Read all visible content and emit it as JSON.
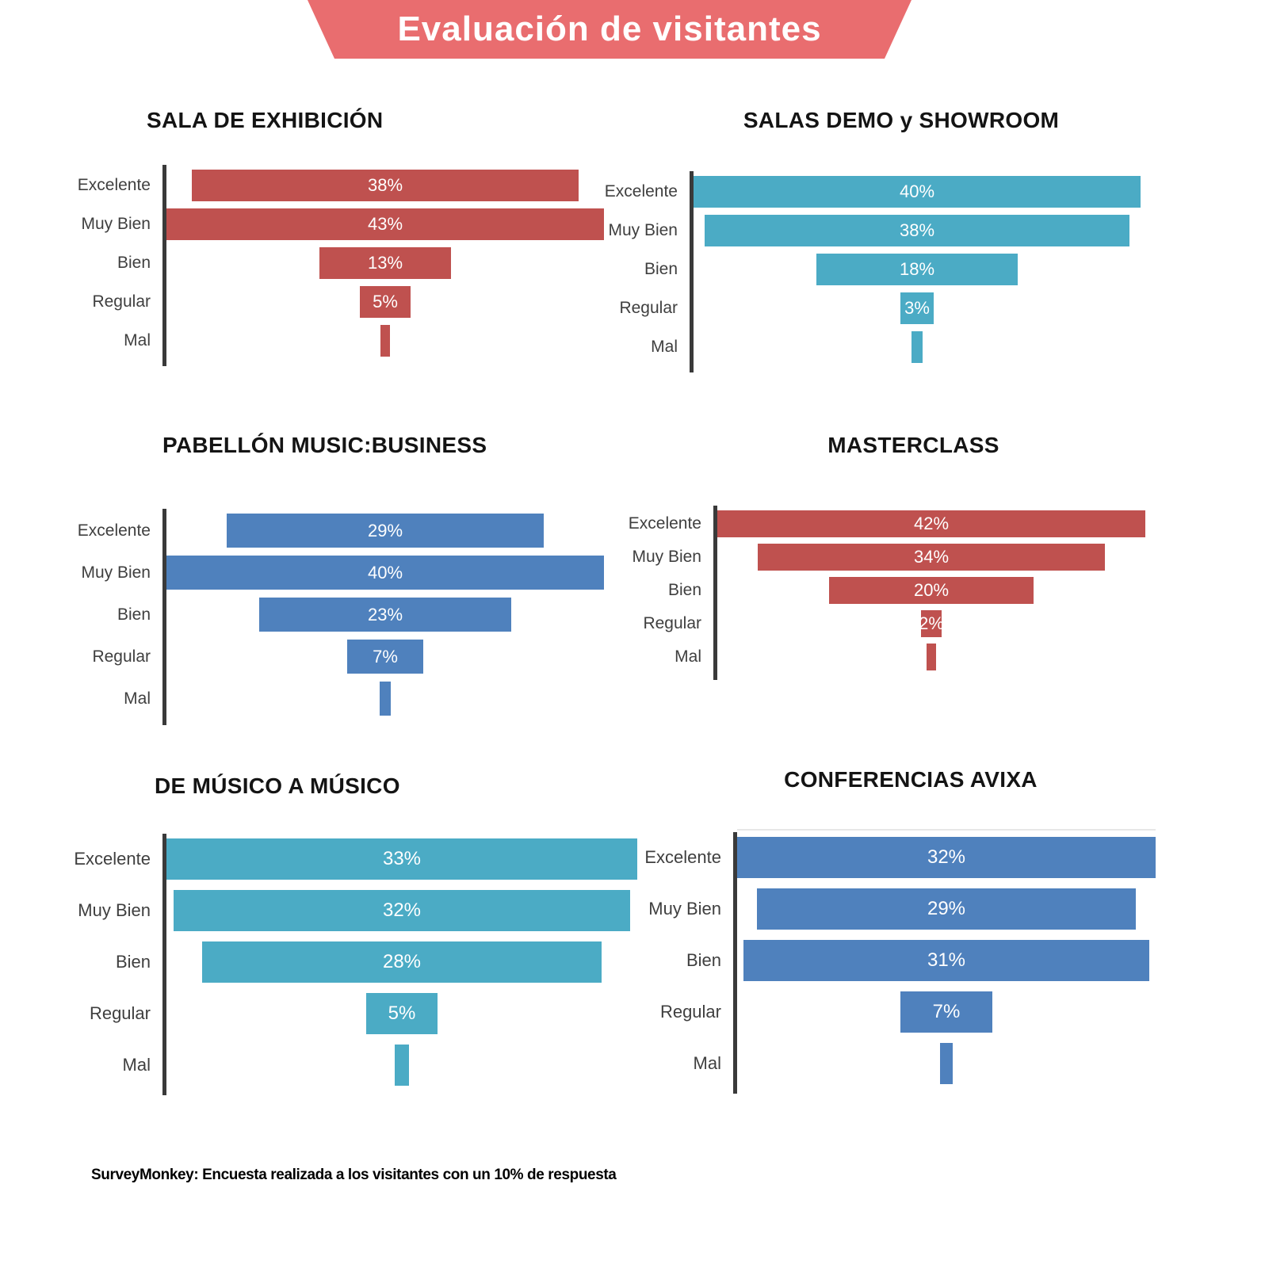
{
  "header": {
    "title": "Evaluación de visitantes",
    "banner_color": "#E96D6F"
  },
  "footer": {
    "source": "SurveyMonkey: Encuesta realizada a los visitantes con un 10% de respuesta"
  },
  "palette": {
    "red": "#BF514F",
    "teal": "#4BABC5",
    "blue": "#4F81BD",
    "axis": "#3a3a3a",
    "category_label": "#3f3f3f",
    "value_label": "#ffffff"
  },
  "chart_data": [
    {
      "type": "bar",
      "orientation": "horizontal",
      "bar_alignment": "centered-funnel",
      "title": "SALA DE EXHIBICIÓN",
      "color": "#BF514F",
      "categories": [
        "Excelente",
        "Muy Bien",
        "Bien",
        "Regular",
        "Mal"
      ],
      "values": [
        38,
        43,
        13,
        5,
        1
      ],
      "labels": [
        "38%",
        "43%",
        "13%",
        "5%",
        ""
      ],
      "notes": "Mal bar unlabeled, value estimated ~1%; widest bar spans axis to plot edge"
    },
    {
      "type": "bar",
      "orientation": "horizontal",
      "bar_alignment": "centered-funnel",
      "title": "SALAS DEMO y SHOWROOM",
      "color": "#4BABC5",
      "categories": [
        "Excelente",
        "Muy Bien",
        "Bien",
        "Regular",
        "Mal"
      ],
      "values": [
        40,
        38,
        18,
        3,
        1
      ],
      "labels": [
        "40%",
        "38%",
        "18%",
        "3%",
        ""
      ],
      "notes": "Mal bar unlabeled, value estimated ~1%"
    },
    {
      "type": "bar",
      "orientation": "horizontal",
      "bar_alignment": "centered-funnel",
      "title": "PABELLÓN MUSIC:BUSINESS",
      "color": "#4F81BD",
      "categories": [
        "Excelente",
        "Muy Bien",
        "Bien",
        "Regular",
        "Mal"
      ],
      "values": [
        29,
        40,
        23,
        7,
        1
      ],
      "labels": [
        "29%",
        "40%",
        "23%",
        "7%",
        ""
      ],
      "notes": "Mal bar unlabeled, value estimated ~1%"
    },
    {
      "type": "bar",
      "orientation": "horizontal",
      "bar_alignment": "centered-funnel",
      "title": "MASTERCLASS",
      "color": "#BF514F",
      "categories": [
        "Excelente",
        "Muy Bien",
        "Bien",
        "Regular",
        "Mal"
      ],
      "values": [
        42,
        34,
        20,
        2,
        1
      ],
      "labels": [
        "42%",
        "34%",
        "20%",
        "2%",
        ""
      ],
      "notes": "Mal bar unlabeled, value estimated ~1%"
    },
    {
      "type": "bar",
      "orientation": "horizontal",
      "bar_alignment": "centered-funnel",
      "title": "DE MÚSICO A MÚSICO",
      "color": "#4BABC5",
      "categories": [
        "Excelente",
        "Muy Bien",
        "Bien",
        "Regular",
        "Mal"
      ],
      "values": [
        33,
        32,
        28,
        5,
        1
      ],
      "labels": [
        "33%",
        "32%",
        "28%",
        "5%",
        ""
      ],
      "notes": "Mal bar unlabeled, value estimated ~1%"
    },
    {
      "type": "bar",
      "orientation": "horizontal",
      "bar_alignment": "centered-funnel",
      "title": "CONFERENCIAS AVIXA",
      "color": "#4F81BD",
      "categories": [
        "Excelente",
        "Muy Bien",
        "Bien",
        "Regular",
        "Mal"
      ],
      "values": [
        32,
        29,
        31,
        7,
        1
      ],
      "labels": [
        "32%",
        "29%",
        "31%",
        "7%",
        ""
      ],
      "notes": "Mal bar unlabeled, value estimated ~1%"
    }
  ]
}
